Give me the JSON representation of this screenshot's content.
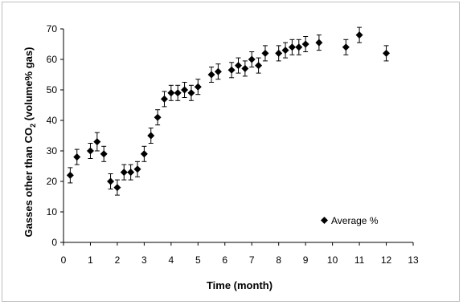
{
  "chart_data": {
    "type": "scatter",
    "title": "",
    "xlabel": "Time (month)",
    "ylabel": "Gasses other than CO2 (volume% gas)",
    "ylabel_parts": {
      "pre": "Gasses other than CO",
      "sub": "2",
      "post": " (volume% gas)"
    },
    "xlim": [
      0,
      13
    ],
    "ylim": [
      0,
      70
    ],
    "xticks": [
      0,
      1,
      2,
      3,
      4,
      5,
      6,
      7,
      8,
      9,
      10,
      11,
      12,
      13
    ],
    "yticks": [
      0,
      10,
      20,
      30,
      40,
      50,
      60,
      70
    ],
    "grid": false,
    "legend_position": "bottom-right",
    "series": [
      {
        "name": "Average %",
        "marker": "diamond",
        "color": "#000000",
        "points": [
          {
            "x": 0.25,
            "y": 22,
            "err": 2.5
          },
          {
            "x": 0.5,
            "y": 28,
            "err": 2.5
          },
          {
            "x": 1.0,
            "y": 30,
            "err": 2.5
          },
          {
            "x": 1.25,
            "y": 33,
            "err": 3
          },
          {
            "x": 1.5,
            "y": 29,
            "err": 2.5
          },
          {
            "x": 1.75,
            "y": 20,
            "err": 2.5
          },
          {
            "x": 2.0,
            "y": 18,
            "err": 2.5
          },
          {
            "x": 2.25,
            "y": 23,
            "err": 2.5
          },
          {
            "x": 2.5,
            "y": 23,
            "err": 2.5
          },
          {
            "x": 2.75,
            "y": 24,
            "err": 2.5
          },
          {
            "x": 3.0,
            "y": 29,
            "err": 2.5
          },
          {
            "x": 3.25,
            "y": 35,
            "err": 2.5
          },
          {
            "x": 3.5,
            "y": 41,
            "err": 2.5
          },
          {
            "x": 3.75,
            "y": 47,
            "err": 2.5
          },
          {
            "x": 4.0,
            "y": 49,
            "err": 2.5
          },
          {
            "x": 4.25,
            "y": 49,
            "err": 2.5
          },
          {
            "x": 4.5,
            "y": 50,
            "err": 2.5
          },
          {
            "x": 4.75,
            "y": 49,
            "err": 2.5
          },
          {
            "x": 5.0,
            "y": 51,
            "err": 2.5
          },
          {
            "x": 5.5,
            "y": 55,
            "err": 2.5
          },
          {
            "x": 5.75,
            "y": 56,
            "err": 2.5
          },
          {
            "x": 6.25,
            "y": 56.5,
            "err": 2.5
          },
          {
            "x": 6.5,
            "y": 58,
            "err": 2.5
          },
          {
            "x": 6.75,
            "y": 57,
            "err": 2.5
          },
          {
            "x": 7.0,
            "y": 60,
            "err": 2.5
          },
          {
            "x": 7.25,
            "y": 58,
            "err": 2.5
          },
          {
            "x": 7.5,
            "y": 62,
            "err": 2.5
          },
          {
            "x": 8.0,
            "y": 62,
            "err": 2.5
          },
          {
            "x": 8.25,
            "y": 63,
            "err": 2.5
          },
          {
            "x": 8.5,
            "y": 64,
            "err": 2.5
          },
          {
            "x": 8.75,
            "y": 64,
            "err": 2.5
          },
          {
            "x": 9.0,
            "y": 65,
            "err": 2.5
          },
          {
            "x": 9.5,
            "y": 65.5,
            "err": 2.5
          },
          {
            "x": 10.5,
            "y": 64,
            "err": 2.5
          },
          {
            "x": 11.0,
            "y": 68,
            "err": 2.5
          },
          {
            "x": 12.0,
            "y": 62,
            "err": 2.5
          }
        ]
      }
    ]
  }
}
